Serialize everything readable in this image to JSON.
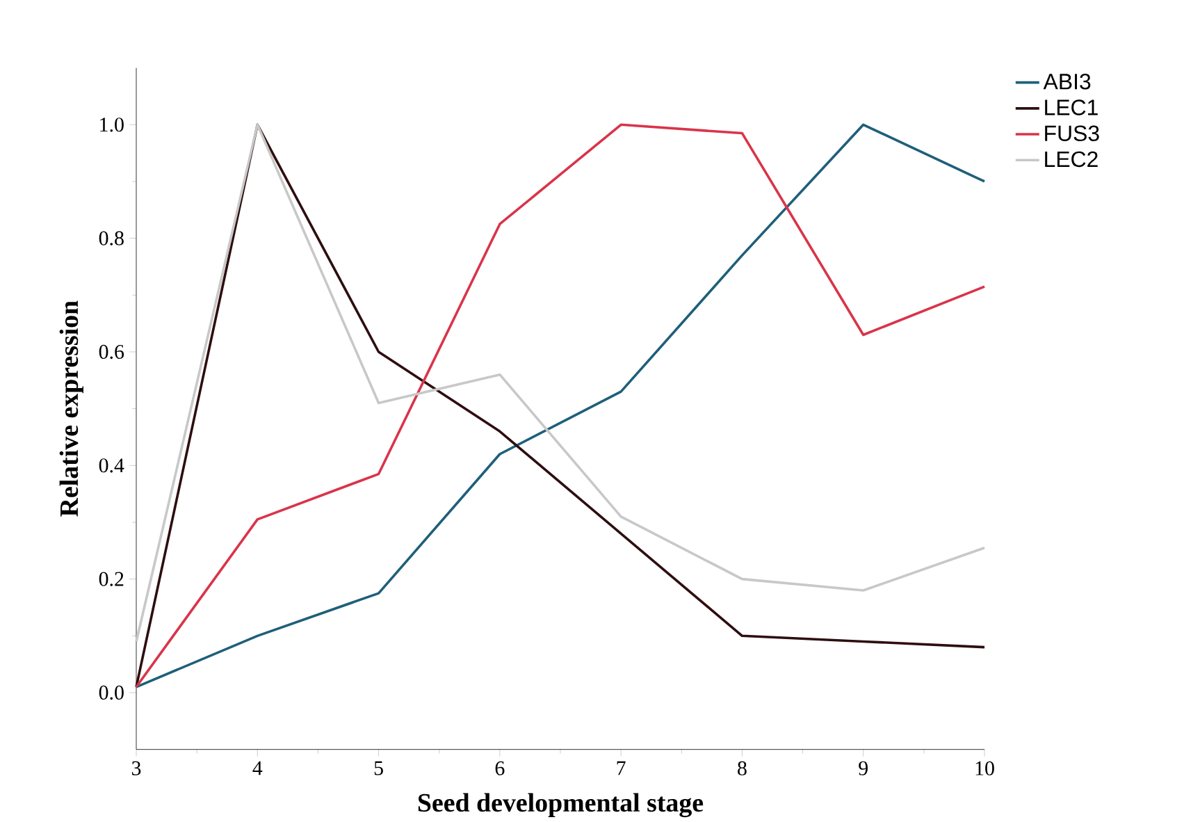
{
  "chart_data": {
    "type": "line",
    "xlabel": "Seed developmental stage",
    "ylabel": "Relative expression",
    "x": [
      3,
      4,
      5,
      6,
      7,
      8,
      9,
      10
    ],
    "series": [
      {
        "name": "ABI3",
        "color": "#1f5f7a",
        "values": [
          0.01,
          0.1,
          0.175,
          0.42,
          0.53,
          0.77,
          1.0,
          0.9
        ]
      },
      {
        "name": "LEC1",
        "color": "#2e0e10",
        "values": [
          0.01,
          1.0,
          0.6,
          0.46,
          0.28,
          0.1,
          0.09,
          0.08
        ]
      },
      {
        "name": "FUS3",
        "color": "#d9344a",
        "values": [
          0.01,
          0.305,
          0.385,
          0.825,
          1.0,
          0.985,
          0.63,
          0.715
        ]
      },
      {
        "name": "LEC2",
        "color": "#c8c8c8",
        "values": [
          0.09,
          1.0,
          0.51,
          0.56,
          0.31,
          0.2,
          0.18,
          0.255
        ]
      }
    ],
    "xlim": [
      3,
      10
    ],
    "xticks": [
      3,
      4,
      5,
      6,
      7,
      8,
      9,
      10
    ],
    "ylim": [
      -0.1,
      1.1
    ],
    "yticks": [
      {
        "value": 0,
        "label": "0.0"
      },
      {
        "value": 0.2,
        "label": "0.2"
      },
      {
        "value": 0.4,
        "label": "0.4"
      },
      {
        "value": 0.6,
        "label": "0.6"
      },
      {
        "value": 0.8,
        "label": "0.8"
      },
      {
        "value": 1,
        "label": "1.0"
      }
    ],
    "legend": "top right",
    "marker": "none",
    "line_style": "solid",
    "grid": false
  }
}
